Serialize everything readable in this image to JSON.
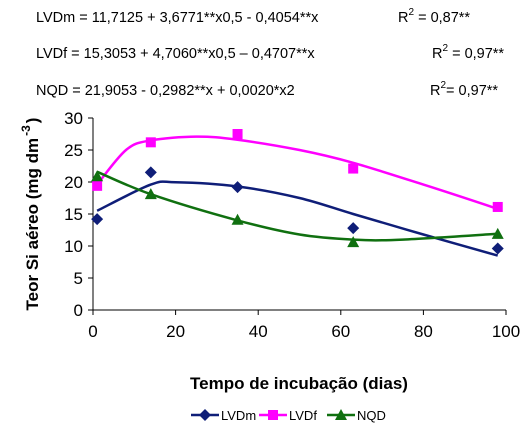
{
  "equations": [
    {
      "lhs": "LVDm",
      "rhs": "= 11,7125 + 3,6771**x0,5 - 0,4054**x",
      "r2_label": "R",
      "r2_sup": "2",
      "r2_value": " = 0,87**"
    },
    {
      "lhs": "LVDf",
      "rhs": "= 15,3053 + 4,7060**x0,5 – 0,4707**x",
      "r2_label": "R",
      "r2_sup": "2",
      "r2_value": " = 0,97**"
    },
    {
      "lhs": "NQD",
      "rhs": "= 21,9053 - 0,2982**x + 0,0020*x2",
      "r2_label": "R",
      "r2_sup": "2",
      "r2_value": "= 0,97**"
    }
  ],
  "chart_data": {
    "type": "line",
    "xlabel": "Tempo de incubação (dias)",
    "ylabel_main": "Teor Si aéreo (mg dm",
    "ylabel_sup": "-3",
    "ylabel_close": ")",
    "xlim": [
      0,
      100
    ],
    "ylim": [
      0,
      30
    ],
    "x_ticks": [
      "0",
      "20",
      "40",
      "60",
      "80",
      "100"
    ],
    "y_ticks": [
      "0",
      "5",
      "10",
      "15",
      "20",
      "25",
      "30"
    ],
    "grid": false,
    "legend_position": "bottom",
    "series": [
      {
        "name": "LVDm",
        "color": "#0f1e78",
        "marker": "diamond",
        "points": [
          [
            1,
            14.2
          ],
          [
            14,
            21.5
          ],
          [
            35,
            19.2
          ],
          [
            63,
            12.8
          ],
          [
            98,
            9.6
          ]
        ],
        "fit": [
          [
            1,
            15.5
          ],
          [
            14,
            19.6
          ],
          [
            20,
            19.95
          ],
          [
            35,
            19.3
          ],
          [
            50,
            17.5
          ],
          [
            63,
            15.0
          ],
          [
            80,
            11.8
          ],
          [
            98,
            8.5
          ]
        ]
      },
      {
        "name": "LVDf",
        "color": "#ff00ff",
        "marker": "square",
        "points": [
          [
            1,
            19.4
          ],
          [
            14,
            26.2
          ],
          [
            35,
            27.5
          ],
          [
            63,
            22.1
          ],
          [
            98,
            16.1
          ]
        ],
        "fit": [
          [
            1,
            19.6
          ],
          [
            8,
            25.0
          ],
          [
            14,
            26.5
          ],
          [
            25,
            27.1
          ],
          [
            35,
            26.6
          ],
          [
            50,
            25.0
          ],
          [
            63,
            23.0
          ],
          [
            80,
            19.6
          ],
          [
            98,
            15.8
          ]
        ]
      },
      {
        "name": "NQD",
        "color": "#107010",
        "marker": "triangle",
        "points": [
          [
            1,
            20.9
          ],
          [
            14,
            18.1
          ],
          [
            35,
            14.1
          ],
          [
            63,
            10.6
          ],
          [
            98,
            11.9
          ]
        ],
        "fit": [
          [
            1,
            21.6
          ],
          [
            14,
            18.1
          ],
          [
            35,
            14.0
          ],
          [
            50,
            11.8
          ],
          [
            63,
            11.0
          ],
          [
            75,
            11.0
          ],
          [
            98,
            11.9
          ]
        ]
      }
    ]
  }
}
